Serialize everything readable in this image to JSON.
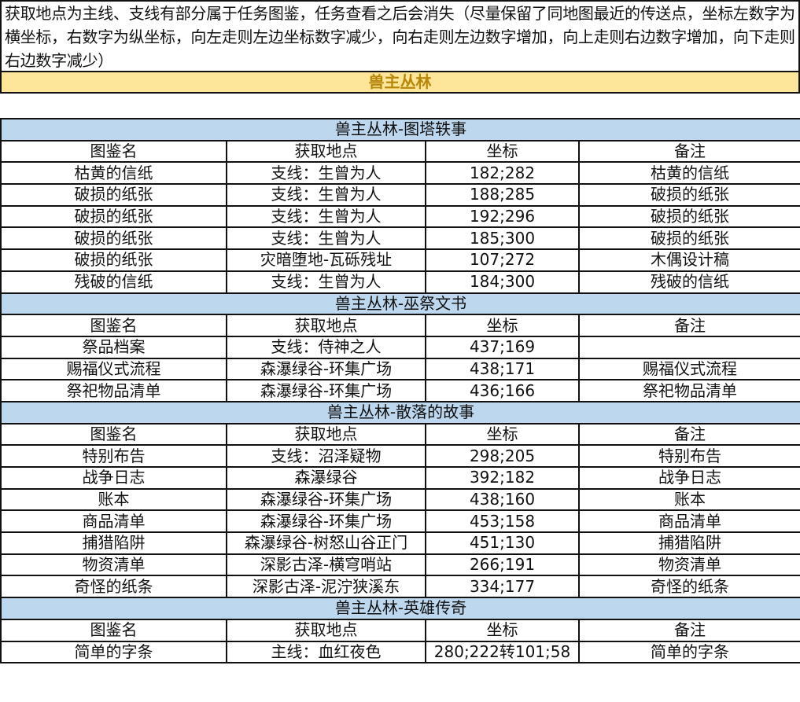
{
  "intro": "获取地点为主线、支线有部分属于任务图鉴，任务查看之后会消失（尽量保留了同地图最近的传送点，坐标左数字为横坐标，右数字为纵坐标，向左走则左边坐标数字减少，向右走则左边数字增加，向上走则右边数字增加，向下走则右边数字减少）",
  "banner": "兽主丛林",
  "columns": [
    "图鉴名",
    "获取地点",
    "坐标",
    "备注"
  ],
  "colors": {
    "banner_bg": "#fde69a",
    "banner_text": "#b8860b",
    "section_bg": "#bdd7ee"
  },
  "sections": [
    {
      "title": "兽主丛林-图塔轶事",
      "rows": [
        [
          "枯黄的信纸",
          "支线：生曾为人",
          "182;282",
          "枯黄的信纸"
        ],
        [
          "破损的纸张",
          "支线：生曾为人",
          "188;285",
          "破损的纸张"
        ],
        [
          "破损的纸张",
          "支线：生曾为人",
          "192;296",
          "破损的纸张"
        ],
        [
          "破损的纸张",
          "支线：生曾为人",
          "185;300",
          "破损的纸张"
        ],
        [
          "破损的纸张",
          "灾暗堕地-瓦砾残址",
          "107;272",
          "木偶设计稿"
        ],
        [
          "残破的信纸",
          "支线：生曾为人",
          "184;300",
          "残破的信纸"
        ]
      ]
    },
    {
      "title": "兽主丛林-巫祭文书",
      "rows": [
        [
          "祭品档案",
          "支线：侍神之人",
          "437;169",
          ""
        ],
        [
          "赐福仪式流程",
          "森瀑绿谷-环集广场",
          "438;171",
          "赐福仪式流程"
        ],
        [
          "祭祀物品清单",
          "森瀑绿谷-环集广场",
          "436;166",
          "祭祀物品清单"
        ]
      ]
    },
    {
      "title": "兽主丛林-散落的故事",
      "rows": [
        [
          "特别布告",
          "支线：沼泽疑物",
          "298;205",
          "特别布告"
        ],
        [
          "战争日志",
          "森瀑绿谷",
          "392;182",
          "战争日志"
        ],
        [
          "账本",
          "森瀑绿谷-环集广场",
          "438;160",
          "账本"
        ],
        [
          "商品清单",
          "森瀑绿谷-环集广场",
          "453;158",
          "商品清单"
        ],
        [
          "捕猎陷阱",
          "森瀑绿谷-树怒山谷正门",
          "451;130",
          "捕猎陷阱"
        ],
        [
          "物资清单",
          "深影古泽-横穹哨站",
          "266;191",
          "物资清单"
        ],
        [
          "奇怪的纸条",
          "深影古泽-泥泞狭溪东",
          "334;177",
          "奇怪的纸条"
        ]
      ]
    },
    {
      "title": "兽主丛林-英雄传奇",
      "rows": [
        [
          "简单的字条",
          "主线：血红夜色",
          "280;222转101;58",
          "简单的字条"
        ]
      ]
    }
  ]
}
